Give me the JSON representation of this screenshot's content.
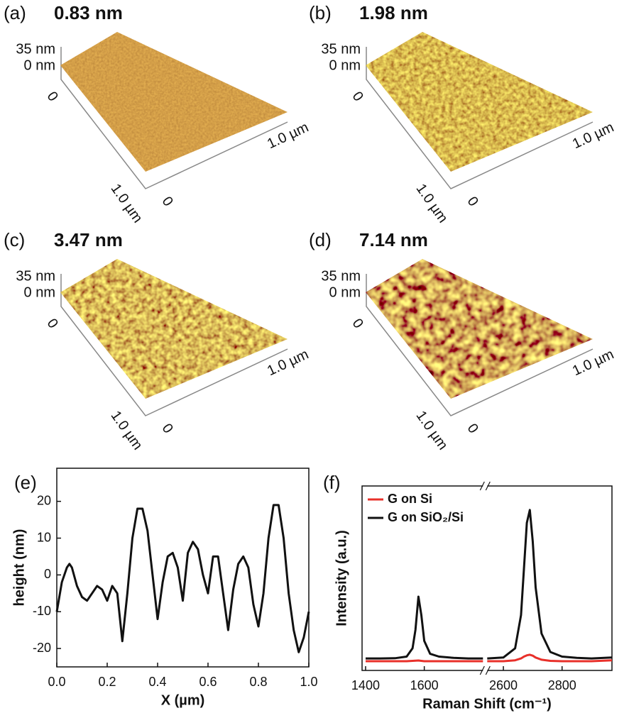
{
  "panels": [
    {
      "label": "(a)",
      "roughness": "0.83 nm",
      "z_top": "35 nm",
      "z_bottom": "0 nm",
      "y_start": "0",
      "y_end": "1.0 µm",
      "x_start": "0",
      "x_end": "1.0 µm"
    },
    {
      "label": "(b)",
      "roughness": "1.98 nm",
      "z_top": "35 nm",
      "z_bottom": "0 nm",
      "y_start": "0",
      "y_end": "1.0 µm",
      "x_start": "0",
      "x_end": "1.0 µm"
    },
    {
      "label": "(c)",
      "roughness": "3.47 nm",
      "z_top": "35 nm",
      "z_bottom": "0 nm",
      "y_start": "0",
      "y_end": "1.0 µm",
      "x_start": "0",
      "x_end": "1.0 µm"
    },
    {
      "label": "(d)",
      "roughness": "7.14 nm",
      "z_top": "35 nm",
      "z_bottom": "0 nm",
      "y_start": "0",
      "y_end": "1.0 µm",
      "x_start": "0",
      "x_end": "1.0 µm"
    }
  ],
  "chart_data": [
    {
      "type": "line",
      "label": "(e)",
      "x_label": "X (µm)",
      "y_label": "height (nm)",
      "x": [
        0,
        0.02,
        0.04,
        0.05,
        0.06,
        0.08,
        0.1,
        0.12,
        0.14,
        0.16,
        0.18,
        0.2,
        0.22,
        0.24,
        0.26,
        0.28,
        0.3,
        0.32,
        0.34,
        0.36,
        0.38,
        0.4,
        0.42,
        0.44,
        0.46,
        0.48,
        0.5,
        0.52,
        0.54,
        0.56,
        0.58,
        0.6,
        0.62,
        0.64,
        0.66,
        0.68,
        0.7,
        0.72,
        0.74,
        0.76,
        0.78,
        0.8,
        0.82,
        0.84,
        0.86,
        0.88,
        0.9,
        0.92,
        0.94,
        0.96,
        0.98,
        1.0
      ],
      "series": [
        {
          "name": null,
          "color": "#111111",
          "values": [
            -10,
            -2,
            2,
            3,
            2,
            -3,
            -6,
            -7,
            -5,
            -3,
            -4,
            -7,
            -3,
            -5,
            -18,
            -5,
            10,
            18,
            18,
            12,
            0,
            -12,
            -2,
            5,
            6,
            2,
            -7,
            6,
            9,
            7,
            0,
            -5,
            5,
            5,
            -5,
            -15,
            -4,
            3,
            5,
            2,
            -8,
            -14,
            -5,
            10,
            19,
            19,
            10,
            -5,
            -15,
            -21,
            -17,
            -10
          ]
        }
      ],
      "xlim": [
        0,
        1
      ],
      "xticks": [
        {
          "value": 0,
          "label": "0.0"
        },
        {
          "value": 0.2,
          "label": "0.2"
        },
        {
          "value": 0.4,
          "label": "0.4"
        },
        {
          "value": 0.6,
          "label": "0.6"
        },
        {
          "value": 0.8,
          "label": "0.8"
        },
        {
          "value": 1,
          "label": "1.0"
        }
      ],
      "ylim": [
        -25,
        29
      ],
      "yticks": [
        -20,
        -10,
        0,
        10,
        20
      ]
    },
    {
      "type": "line",
      "label": "(f)",
      "x_label": "Raman Shift (cm⁻¹)",
      "y_label": "Intensity (a.u.)",
      "legend": "upper left",
      "x": [
        1400,
        1450,
        1500,
        1540,
        1560,
        1570,
        1580,
        1590,
        1600,
        1620,
        1650,
        1700,
        1750,
        1800,
        2545,
        2600,
        2640,
        2660,
        2670,
        2680,
        2690,
        2700,
        2710,
        2730,
        2760,
        2800,
        2850,
        2900,
        2970
      ],
      "xlim": [
        1388,
        2970
      ],
      "xbreak": [
        1800,
        2545
      ],
      "xticks": [
        1400,
        1600,
        2600,
        2800
      ],
      "ylim": [
        0,
        1
      ],
      "series": [
        {
          "name": "G on Si",
          "color": "#e8302a",
          "values": [
            0.05,
            0.05,
            0.05,
            0.05,
            0.052,
            0.053,
            0.054,
            0.052,
            0.05,
            0.05,
            0.05,
            0.05,
            0.05,
            0.05,
            0.05,
            0.05,
            0.055,
            0.065,
            0.075,
            0.082,
            0.085,
            0.08,
            0.07,
            0.058,
            0.052,
            0.05,
            0.05,
            0.05,
            0.055
          ]
        },
        {
          "name": "G on SiO₂/Si",
          "color": "#111111",
          "values": [
            0.065,
            0.065,
            0.066,
            0.075,
            0.12,
            0.22,
            0.4,
            0.3,
            0.16,
            0.09,
            0.075,
            0.068,
            0.065,
            0.065,
            0.065,
            0.07,
            0.12,
            0.3,
            0.55,
            0.8,
            0.87,
            0.7,
            0.45,
            0.2,
            0.1,
            0.075,
            0.068,
            0.065,
            0.07
          ]
        }
      ]
    }
  ]
}
